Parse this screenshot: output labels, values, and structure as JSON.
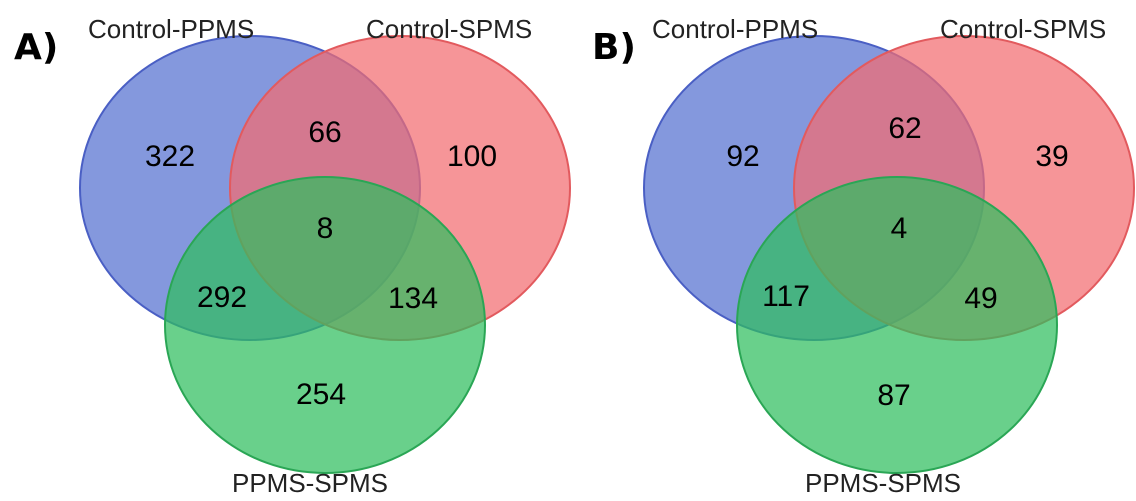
{
  "colors": {
    "blue": "#5b76d2",
    "red": "#f26c70",
    "green": "#2fbe5e",
    "blue_stroke": "#4a5fc4",
    "red_stroke": "#e25a5e",
    "green_stroke": "#2aa655"
  },
  "panels": [
    {
      "letter": "A)",
      "labels": {
        "set1": "Control-PPMS",
        "set2": "Control-SPMS",
        "set3": "PPMS-SPMS"
      },
      "counts": {
        "only1": "322",
        "only2": "100",
        "only3": "254",
        "r12": "66",
        "r13": "292",
        "r23": "134",
        "r123": "8"
      }
    },
    {
      "letter": "B)",
      "labels": {
        "set1": "Control-PPMS",
        "set2": "Control-SPMS",
        "set3": "PPMS-SPMS"
      },
      "counts": {
        "only1": "92",
        "only2": "39",
        "only3": "87",
        "r12": "62",
        "r13": "117",
        "r23": "49",
        "r123": "4"
      }
    }
  ]
}
